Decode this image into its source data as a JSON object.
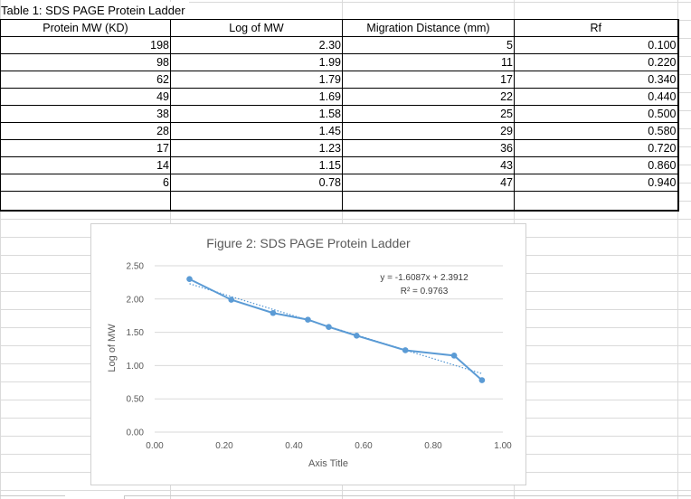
{
  "table": {
    "title": "Table 1: SDS PAGE Protein Ladder",
    "headers": [
      "Protein MW (KD)",
      "Log of MW",
      "Migration Distance (mm)",
      "Rf"
    ],
    "rows": [
      [
        "198",
        "2.30",
        "5",
        "0.100"
      ],
      [
        "98",
        "1.99",
        "11",
        "0.220"
      ],
      [
        "62",
        "1.79",
        "17",
        "0.340"
      ],
      [
        "49",
        "1.69",
        "22",
        "0.440"
      ],
      [
        "38",
        "1.58",
        "25",
        "0.500"
      ],
      [
        "28",
        "1.45",
        "29",
        "0.580"
      ],
      [
        "17",
        "1.23",
        "36",
        "0.720"
      ],
      [
        "14",
        "1.15",
        "43",
        "0.860"
      ],
      [
        "6",
        "0.78",
        "47",
        "0.940"
      ]
    ]
  },
  "chart_data": {
    "type": "scatter",
    "title": "Figure 2: SDS PAGE Protein Ladder",
    "xlabel": "Axis Title",
    "ylabel": "Log of MW",
    "xlim": [
      0,
      1
    ],
    "ylim": [
      0,
      2.5
    ],
    "x_ticks": [
      "0.00",
      "0.20",
      "0.40",
      "0.60",
      "0.80",
      "1.00"
    ],
    "y_ticks": [
      "0.00",
      "0.50",
      "1.00",
      "1.50",
      "2.00",
      "2.50"
    ],
    "x_tick_values": [
      0,
      0.2,
      0.4,
      0.6,
      0.8,
      1.0
    ],
    "y_tick_values": [
      0,
      0.5,
      1.0,
      1.5,
      2.0,
      2.5
    ],
    "grid": "horizontal",
    "series": [
      {
        "x": [
          0.1,
          0.22,
          0.34,
          0.44,
          0.5,
          0.58,
          0.72,
          0.86,
          0.94
        ],
        "y": [
          2.3,
          1.99,
          1.79,
          1.69,
          1.58,
          1.45,
          1.23,
          1.15,
          0.78
        ],
        "color": "#5b9bd5",
        "connected": true
      }
    ],
    "trendline": {
      "slope": -1.6087,
      "intercept": 2.3912,
      "color": "#5b9bd5",
      "style": "dotted",
      "equation": "y = -1.6087x + 2.3912",
      "r_squared": "R² = 0.9763"
    }
  }
}
